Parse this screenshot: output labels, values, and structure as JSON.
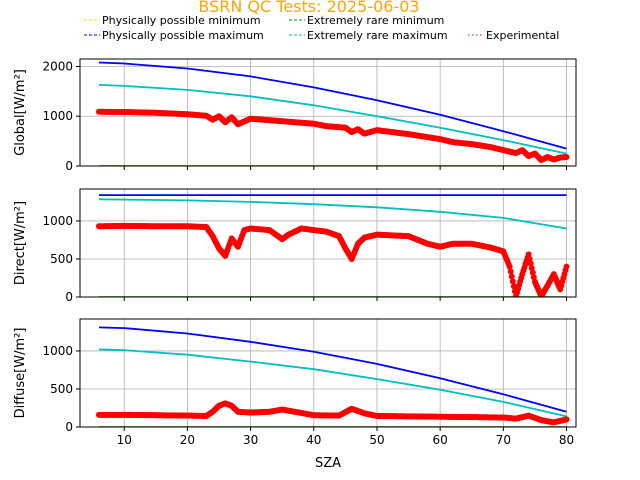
{
  "chart_data": {
    "type": "scatter",
    "title": "BSRN QC Tests: 2025-06-03",
    "title_color": "#ffa500",
    "xlabel": "SZA",
    "xlim": [
      3,
      81.5
    ],
    "x_ticks": [
      10,
      20,
      30,
      40,
      50,
      60,
      70,
      80
    ],
    "grid": true,
    "legend": {
      "placement": "top",
      "entries": [
        {
          "name": "Physically possible minimum",
          "color": "#ffd700",
          "style": "dashed"
        },
        {
          "name": "Extremely rare minimum",
          "color": "#008000",
          "style": "dashed"
        },
        {
          "name": "Physically possible maximum",
          "color": "#0000ff",
          "style": "dashed"
        },
        {
          "name": "Extremely rare maximum",
          "color": "#00bfbf",
          "style": "dashed"
        },
        {
          "name": "Experimental",
          "color": "#ff0000",
          "style": "dotted"
        }
      ]
    },
    "panels": [
      {
        "ylabel": "Global[W/m²]",
        "ylim": [
          0,
          2150
        ],
        "y_ticks": [
          0,
          1000,
          2000
        ],
        "series": [
          {
            "name": "Physically possible minimum",
            "color": "#ffd700",
            "points": [
              [
                6,
                -4
              ],
              [
                80,
                -4
              ]
            ]
          },
          {
            "name": "Extremely rare minimum",
            "color": "#008000",
            "points": [
              [
                6,
                -2
              ],
              [
                80,
                -2
              ]
            ]
          },
          {
            "name": "Physically possible maximum",
            "color": "#0000ff",
            "points": [
              [
                6,
                2080
              ],
              [
                10,
                2060
              ],
              [
                20,
                1960
              ],
              [
                30,
                1800
              ],
              [
                40,
                1580
              ],
              [
                50,
                1320
              ],
              [
                60,
                1030
              ],
              [
                70,
                700
              ],
              [
                80,
                350
              ]
            ]
          },
          {
            "name": "Extremely rare maximum",
            "color": "#00bfbf",
            "points": [
              [
                6,
                1630
              ],
              [
                10,
                1610
              ],
              [
                20,
                1530
              ],
              [
                30,
                1400
              ],
              [
                40,
                1220
              ],
              [
                50,
                1000
              ],
              [
                60,
                770
              ],
              [
                70,
                520
              ],
              [
                80,
                250
              ]
            ]
          },
          {
            "name": "Experimental",
            "color": "#ff0000",
            "points": [
              [
                6,
                1090
              ],
              [
                10,
                1085
              ],
              [
                15,
                1070
              ],
              [
                20,
                1040
              ],
              [
                23,
                1010
              ],
              [
                24,
                930
              ],
              [
                25,
                1000
              ],
              [
                26,
                880
              ],
              [
                27,
                980
              ],
              [
                28,
                840
              ],
              [
                30,
                950
              ],
              [
                35,
                900
              ],
              [
                40,
                850
              ],
              [
                42,
                800
              ],
              [
                45,
                770
              ],
              [
                46,
                680
              ],
              [
                47,
                740
              ],
              [
                48,
                650
              ],
              [
                50,
                720
              ],
              [
                55,
                640
              ],
              [
                60,
                540
              ],
              [
                62,
                480
              ],
              [
                65,
                440
              ],
              [
                68,
                380
              ],
              [
                70,
                320
              ],
              [
                72,
                260
              ],
              [
                73,
                320
              ],
              [
                74,
                200
              ],
              [
                75,
                250
              ],
              [
                76,
                120
              ],
              [
                77,
                180
              ],
              [
                78,
                130
              ],
              [
                79,
                170
              ],
              [
                80,
                180
              ]
            ]
          }
        ]
      },
      {
        "ylabel": "Direct[W/m²]",
        "ylim": [
          0,
          1420
        ],
        "y_ticks": [
          0,
          500,
          1000
        ],
        "series": [
          {
            "name": "Physically possible minimum",
            "color": "#ffd700",
            "points": [
              [
                6,
                -4
              ],
              [
                80,
                -4
              ]
            ]
          },
          {
            "name": "Extremely rare minimum",
            "color": "#008000",
            "points": [
              [
                6,
                -2
              ],
              [
                80,
                -2
              ]
            ]
          },
          {
            "name": "Physically possible maximum",
            "color": "#0000ff",
            "points": [
              [
                6,
                1340
              ],
              [
                80,
                1340
              ]
            ]
          },
          {
            "name": "Extremely rare maximum",
            "color": "#00bfbf",
            "points": [
              [
                6,
                1285
              ],
              [
                20,
                1270
              ],
              [
                30,
                1250
              ],
              [
                40,
                1220
              ],
              [
                50,
                1180
              ],
              [
                60,
                1120
              ],
              [
                70,
                1040
              ],
              [
                80,
                900
              ]
            ]
          },
          {
            "name": "Experimental",
            "color": "#ff0000",
            "points": [
              [
                6,
                930
              ],
              [
                10,
                935
              ],
              [
                15,
                930
              ],
              [
                20,
                930
              ],
              [
                23,
                920
              ],
              [
                24,
                800
              ],
              [
                25,
                640
              ],
              [
                26,
                540
              ],
              [
                27,
                770
              ],
              [
                28,
                660
              ],
              [
                29,
                880
              ],
              [
                30,
                900
              ],
              [
                33,
                880
              ],
              [
                35,
                760
              ],
              [
                36,
                820
              ],
              [
                38,
                900
              ],
              [
                40,
                880
              ],
              [
                42,
                860
              ],
              [
                44,
                800
              ],
              [
                45,
                640
              ],
              [
                46,
                500
              ],
              [
                47,
                700
              ],
              [
                48,
                780
              ],
              [
                50,
                820
              ],
              [
                55,
                800
              ],
              [
                58,
                700
              ],
              [
                60,
                660
              ],
              [
                62,
                700
              ],
              [
                65,
                700
              ],
              [
                68,
                650
              ],
              [
                70,
                600
              ],
              [
                71,
                400
              ],
              [
                72,
                10
              ],
              [
                73,
                300
              ],
              [
                74,
                560
              ],
              [
                75,
                200
              ],
              [
                76,
                10
              ],
              [
                77,
                150
              ],
              [
                78,
                300
              ],
              [
                79,
                100
              ],
              [
                80,
                400
              ]
            ]
          }
        ]
      },
      {
        "ylabel": "Diffuse[W/m²]",
        "ylim": [
          0,
          1420
        ],
        "y_ticks": [
          0,
          500,
          1000
        ],
        "series": [
          {
            "name": "Physically possible minimum",
            "color": "#ffd700",
            "points": [
              [
                6,
                -4
              ],
              [
                80,
                -4
              ]
            ]
          },
          {
            "name": "Extremely rare minimum",
            "color": "#008000",
            "points": [
              [
                6,
                -2
              ],
              [
                80,
                -2
              ]
            ]
          },
          {
            "name": "Physically possible maximum",
            "color": "#0000ff",
            "points": [
              [
                6,
                1310
              ],
              [
                10,
                1300
              ],
              [
                20,
                1230
              ],
              [
                30,
                1120
              ],
              [
                40,
                990
              ],
              [
                50,
                830
              ],
              [
                60,
                640
              ],
              [
                70,
                430
              ],
              [
                80,
                200
              ]
            ]
          },
          {
            "name": "Extremely rare maximum",
            "color": "#00bfbf",
            "points": [
              [
                6,
                1020
              ],
              [
                10,
                1010
              ],
              [
                20,
                950
              ],
              [
                30,
                860
              ],
              [
                40,
                760
              ],
              [
                50,
                630
              ],
              [
                60,
                490
              ],
              [
                70,
                330
              ],
              [
                80,
                140
              ]
            ]
          },
          {
            "name": "Experimental",
            "color": "#ff0000",
            "points": [
              [
                6,
                160
              ],
              [
                10,
                160
              ],
              [
                15,
                155
              ],
              [
                20,
                150
              ],
              [
                23,
                145
              ],
              [
                24,
                200
              ],
              [
                25,
                280
              ],
              [
                26,
                310
              ],
              [
                27,
                280
              ],
              [
                28,
                200
              ],
              [
                30,
                190
              ],
              [
                33,
                200
              ],
              [
                35,
                230
              ],
              [
                37,
                200
              ],
              [
                40,
                155
              ],
              [
                44,
                150
              ],
              [
                46,
                240
              ],
              [
                48,
                180
              ],
              [
                50,
                145
              ],
              [
                55,
                140
              ],
              [
                60,
                135
              ],
              [
                65,
                130
              ],
              [
                70,
                125
              ],
              [
                72,
                110
              ],
              [
                74,
                150
              ],
              [
                76,
                90
              ],
              [
                78,
                60
              ],
              [
                80,
                100
              ]
            ]
          }
        ]
      }
    ]
  }
}
